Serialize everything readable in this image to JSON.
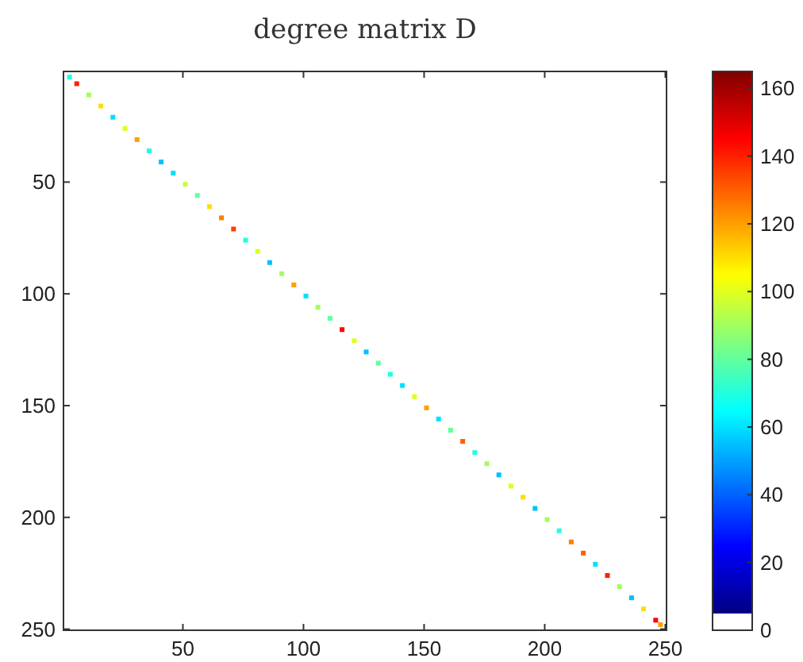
{
  "chart_data": {
    "type": "scatter",
    "title": "degree matrix D",
    "marker": "square",
    "x": [
      3,
      6,
      11,
      16,
      21,
      26,
      31,
      36,
      41,
      46,
      51,
      56,
      61,
      66,
      71,
      76,
      81,
      86,
      91,
      96,
      101,
      106,
      111,
      116,
      121,
      126,
      131,
      136,
      141,
      146,
      151,
      156,
      161,
      166,
      171,
      176,
      181,
      186,
      191,
      196,
      201,
      206,
      211,
      216,
      221,
      226,
      231,
      236,
      241,
      246,
      248
    ],
    "values": [
      3,
      6,
      11,
      16,
      21,
      26,
      31,
      36,
      41,
      46,
      51,
      56,
      61,
      66,
      71,
      76,
      81,
      86,
      91,
      96,
      101,
      106,
      111,
      116,
      121,
      126,
      131,
      136,
      141,
      146,
      151,
      156,
      161,
      166,
      171,
      176,
      181,
      186,
      191,
      196,
      201,
      206,
      211,
      216,
      221,
      226,
      231,
      236,
      241,
      246,
      248
    ],
    "cvalues": [
      70,
      140,
      90,
      110,
      60,
      100,
      120,
      70,
      55,
      60,
      95,
      80,
      110,
      125,
      135,
      70,
      100,
      55,
      90,
      120,
      60,
      90,
      80,
      145,
      100,
      55,
      80,
      70,
      60,
      100,
      120,
      60,
      80,
      130,
      70,
      90,
      55,
      100,
      110,
      55,
      90,
      70,
      125,
      130,
      60,
      140,
      90,
      55,
      110,
      145,
      120
    ],
    "xlim": [
      0.5,
      250.5
    ],
    "ylim": [
      250.5,
      0.5
    ],
    "xticks": [
      50,
      100,
      150,
      200,
      250
    ],
    "yticks": [
      50,
      100,
      150,
      200,
      250
    ],
    "clim": [
      0,
      165
    ],
    "cticks": [
      0,
      20,
      40,
      60,
      80,
      100,
      120,
      140,
      160
    ]
  }
}
